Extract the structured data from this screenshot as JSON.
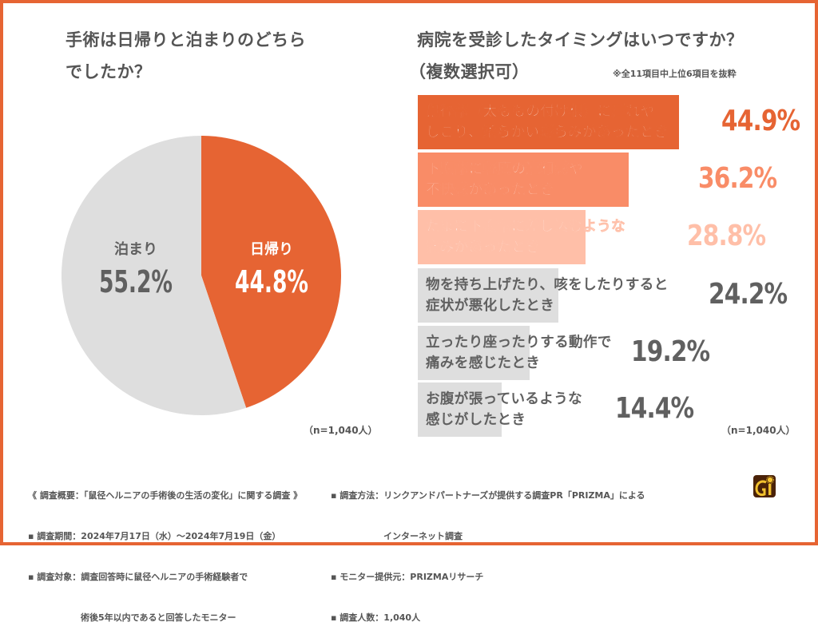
{
  "colors": {
    "accent": "#E66433",
    "salmon": "#F98C67",
    "peach": "#FFBFA8",
    "grey_bar": "#DEDEDE",
    "pie_grey": "#DEDEDE",
    "text_dark": "#606060",
    "logo_bg": "#4A2208",
    "logo_fg": "#F2C12E"
  },
  "left": {
    "title_line1": "手術は日帰りと泊まりのどちら",
    "title_line2": "でしたか？",
    "n_label": "（n=1,040人）"
  },
  "right": {
    "title_line1": "病院を受診したタイミングはいつですか？",
    "title_line2": "（複数選択可）",
    "note": "※全11項目中上位6項目を抜粋",
    "n_label": "（n=1,040人）"
  },
  "chart_data": [
    {
      "type": "pie",
      "title": "手術は日帰りと泊まりのどちらでしたか？",
      "categories": [
        "日帰り",
        "泊まり"
      ],
      "values": [
        44.8,
        55.2
      ],
      "labels": [
        "44.8%",
        "55.2%"
      ],
      "colors": [
        "#E66433",
        "#DEDEDE"
      ],
      "start": "12 o'clock, clockwise",
      "n": "n=1,040人"
    },
    {
      "type": "bar",
      "orientation": "horizontal",
      "title": "病院を受診したタイミングはいつですか？（複数選択可）",
      "subtitle": "※全11項目中上位6項目を抜粋",
      "categories": [
        "鼠径部（太ももの付け根）に腫れや\nしこり、柔らかい膨らみがあったとき",
        "下腹部に軽度の違和感や\n不快感があったとき",
        "たまに下腹部に差し込むような\n痛みがあったとき",
        "物を持ち上げたり、咳をしたりすると\n症状が悪化したとき",
        "立ったり座ったりする動作で\n痛みを感じたとき",
        "お腹が張っているような\n感じがしたとき"
      ],
      "values": [
        44.9,
        36.2,
        28.8,
        24.2,
        19.2,
        14.4
      ],
      "value_labels": [
        "44.9%",
        "36.2%",
        "28.8%",
        "24.2%",
        "19.2%",
        "14.4%"
      ],
      "bar_colors": [
        "#E66433",
        "#F98C67",
        "#FFBFA8",
        "#DEDEDE",
        "#DEDEDE",
        "#DEDEDE"
      ],
      "value_colors": [
        "#E66433",
        "#F98C67",
        "#FFBFA8",
        "#606060",
        "#606060",
        "#606060"
      ],
      "label_light": [
        true,
        true,
        true,
        false,
        false,
        false
      ],
      "n": "n=1,040人"
    }
  ],
  "footer": {
    "left": [
      "《 調査概要：「鼠径ヘルニアの手術後の生活の変化」に関する調査 》",
      "▪ 調査期間：2024年7月17日（水）～2024年7月19日（金）",
      "▪ 調査対象：調査回答時に鼠径ヘルニアの手術経験者で",
      "　　　　　　術後5年以内であると回答したモニター"
    ],
    "right": [
      "▪ 調査方法：リンクアンドパートナーズが提供する調査PR「PRIZMA」による",
      "　　　　　　インターネット調査",
      "▪ モニター提供元：PRIZMAリサーチ",
      "▪ 調査人数：1,040人"
    ]
  },
  "logo": {
    "icon": "gi-logo-icon",
    "letters": "Gi"
  }
}
